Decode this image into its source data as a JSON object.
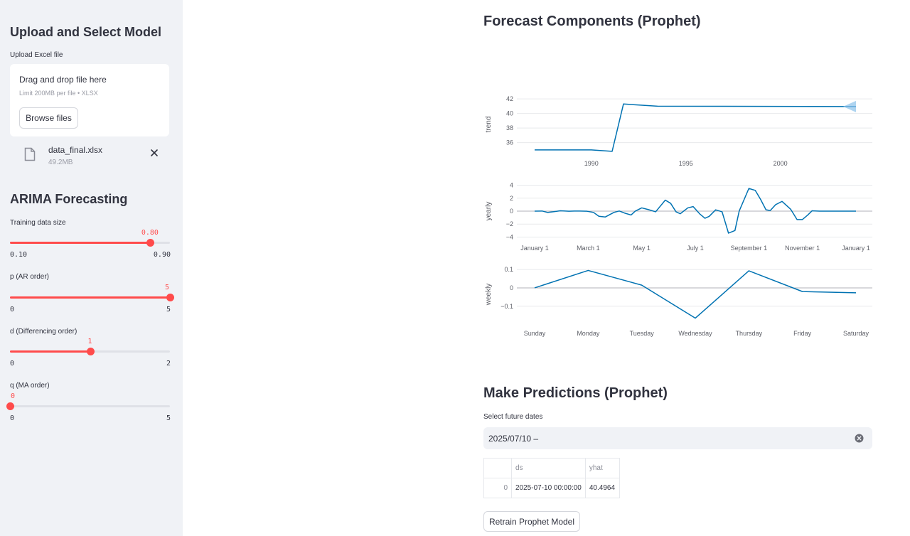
{
  "sidebar": {
    "upload_heading": "Upload and Select Model",
    "upload_label": "Upload Excel file",
    "dropzone_title": "Drag and drop file here",
    "dropzone_limit": "Limit 200MB per file • XLSX",
    "browse_label": "Browse files",
    "file_name": "data_final.xlsx",
    "file_size": "49.2MB",
    "arima_heading": "ARIMA Forecasting",
    "sliders": [
      {
        "label": "Training data size",
        "value": "0.80",
        "min": "0.10",
        "max": "0.90",
        "fraction": 0.875
      },
      {
        "label": "p (AR order)",
        "value": "5",
        "min": "0",
        "max": "5",
        "fraction": 1.0
      },
      {
        "label": "d (Differencing order)",
        "value": "1",
        "min": "0",
        "max": "2",
        "fraction": 0.5
      },
      {
        "label": "q (MA order)",
        "value": "0",
        "min": "0",
        "max": "5",
        "fraction": 0.0
      }
    ]
  },
  "main": {
    "components_heading": "Forecast Components (Prophet)",
    "predictions_heading": "Make Predictions (Prophet)",
    "dates_label": "Select future dates",
    "date_value": "2025/07/10 –",
    "table": {
      "columns": [
        "",
        "ds",
        "yhat"
      ],
      "rows": [
        [
          "0",
          "2025-07-10 00:00:00",
          "40.4964"
        ]
      ]
    },
    "retrain_label": "Retrain Prophet Model"
  },
  "colors": {
    "accent": "#ff4b4b",
    "line": "#0072b2",
    "sidebar_bg": "#f0f2f6"
  },
  "chart_data": [
    {
      "type": "line",
      "ylabel": "trend",
      "xticks": [
        "1990",
        "1995",
        "2000"
      ],
      "yticks": [
        36,
        38,
        40,
        42
      ],
      "x": [
        1987.0,
        1990.0,
        1991.1,
        1991.7,
        1993.5,
        2004.0
      ],
      "values": [
        35.0,
        35.0,
        34.8,
        41.3,
        41.0,
        40.95
      ],
      "xlim": [
        1985.0,
        2005.0
      ],
      "ylim": [
        34.5,
        42.5
      ]
    },
    {
      "type": "line",
      "ylabel": "yearly",
      "xticks": [
        "January 1",
        "March 1",
        "May 1",
        "July 1",
        "September 1",
        "November 1",
        "January 1"
      ],
      "yticks": [
        -4,
        -2,
        0,
        2,
        4
      ],
      "x": [
        0,
        0.07,
        0.12,
        0.18,
        0.24,
        0.32,
        0.37,
        0.42,
        0.49,
        0.55,
        0.6,
        0.66,
        0.74,
        0.79,
        0.84,
        0.9,
        0.94,
        1.0,
        1.06,
        1.13,
        1.16,
        1.22,
        1.27,
        1.32,
        1.36,
        1.43,
        1.48,
        1.54,
        1.59,
        1.63,
        1.69,
        1.75,
        1.81,
        1.87,
        1.91,
        2.0,
        2.06,
        2.11,
        2.16,
        2.2,
        2.25,
        2.31,
        2.39,
        2.45,
        2.5,
        2.55,
        2.59,
        2.66,
        2.72,
        2.77,
        2.84,
        2.9,
        2.95,
        3.0
      ],
      "values": [
        0,
        0.02,
        -0.2,
        -0.08,
        0.05,
        -0.02,
        0.01,
        0.02,
        -0.02,
        -0.2,
        -0.8,
        -0.9,
        -0.2,
        0.02,
        -0.3,
        -0.6,
        0.01,
        0.5,
        0.25,
        -0.1,
        0.5,
        1.7,
        1.2,
        -0.1,
        -0.4,
        0.5,
        0.7,
        -0.4,
        -1.1,
        -0.8,
        0.2,
        -0.1,
        -3.4,
        -3.0,
        0.02,
        3.5,
        3.2,
        1.8,
        0.2,
        0.1,
        1.0,
        1.5,
        0.3,
        -1.3,
        -1.3,
        -0.6,
        0.05,
        0.0,
        0.0,
        0.0,
        0.0,
        0.0,
        0.0,
        0.0
      ],
      "xlim": [
        0,
        3.0
      ],
      "ylim": [
        -4.5,
        4.5
      ]
    },
    {
      "type": "line",
      "ylabel": "weekly",
      "xticks": [
        "Sunday",
        "Monday",
        "Tuesday",
        "Wednesday",
        "Thursday",
        "Friday",
        "Saturday"
      ],
      "yticks": [
        -0.1,
        0,
        0.1
      ],
      "x": [
        0,
        1,
        2,
        3,
        4,
        5,
        6
      ],
      "values": [
        0.0,
        0.095,
        0.015,
        -0.165,
        0.093,
        -0.02,
        -0.027
      ],
      "xlim": [
        0,
        6
      ],
      "ylim": [
        -0.19,
        0.12
      ]
    }
  ]
}
